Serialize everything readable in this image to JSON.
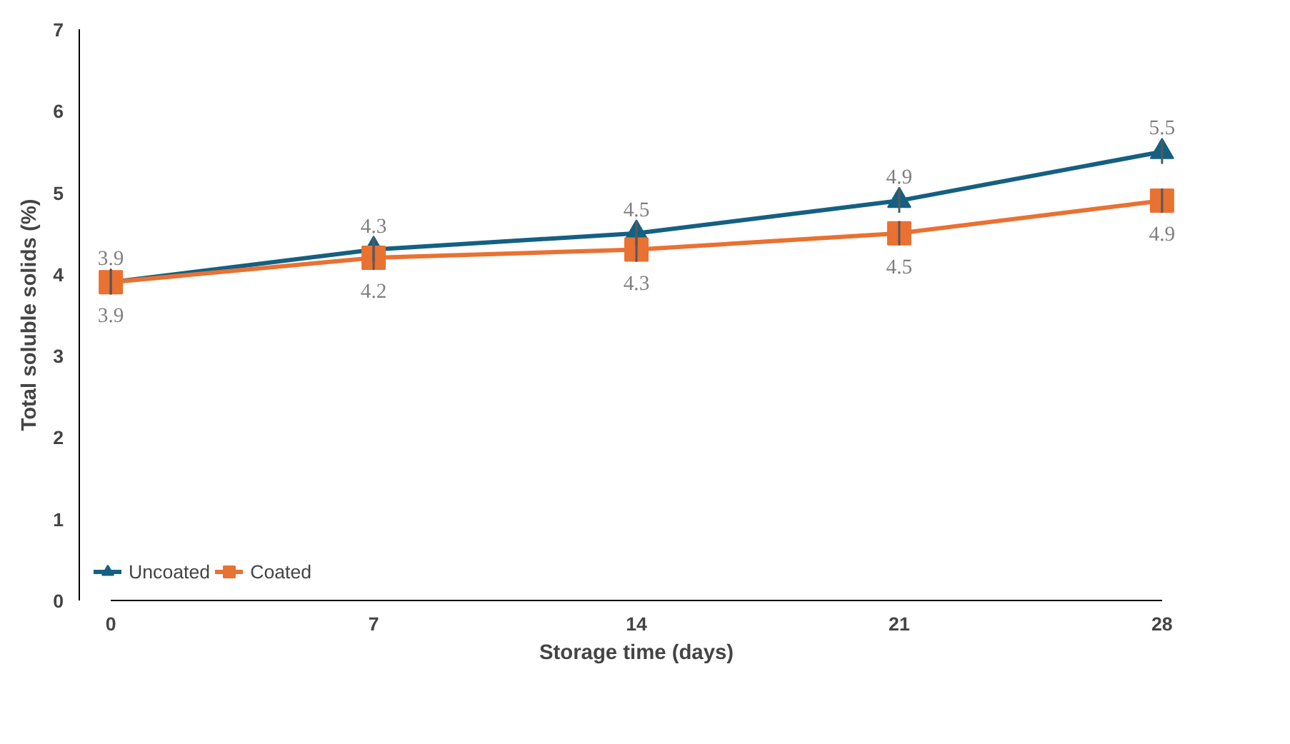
{
  "chart_data": {
    "type": "line",
    "xlabel": "Storage time (days)",
    "ylabel": "Total soluble solids (%)",
    "x": [
      0,
      7,
      14,
      21,
      28
    ],
    "xlim": [
      0,
      28
    ],
    "xticks": [
      0,
      7,
      14,
      21,
      28
    ],
    "ylim": [
      0,
      7
    ],
    "yticks": [
      0,
      1,
      2,
      3,
      4,
      5,
      6,
      7
    ],
    "grid": false,
    "legend": "bottom left",
    "data_labels": true,
    "line_style": "solid",
    "series": [
      {
        "name": "Uncoated",
        "color": "#156082",
        "marker": "triangle",
        "values": [
          3.9,
          4.3,
          4.5,
          4.9,
          5.5
        ],
        "errors": [
          0.15,
          0.15,
          0.15,
          0.15,
          0.15
        ]
      },
      {
        "name": "Coated",
        "color": "#e97132",
        "marker": "square",
        "values": [
          3.9,
          4.2,
          4.3,
          4.5,
          4.9
        ],
        "errors": [
          0.15,
          0.15,
          0.15,
          0.15,
          0.15
        ]
      }
    ]
  }
}
